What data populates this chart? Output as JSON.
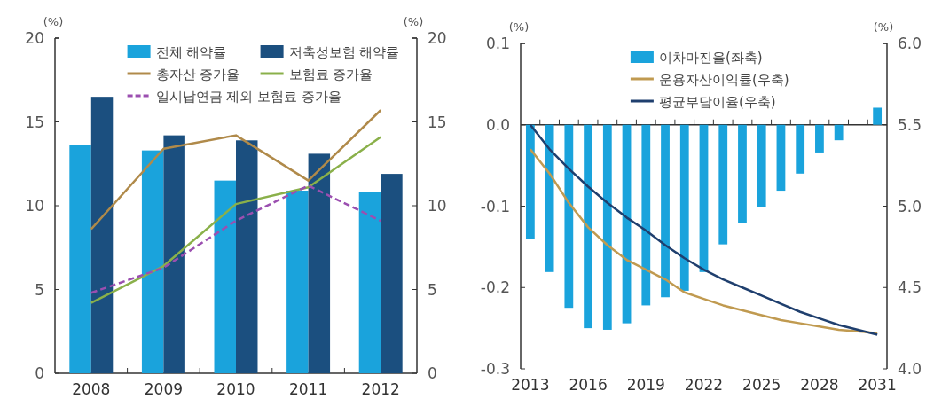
{
  "chart_data": [
    {
      "type": "bar",
      "ylabel": "(%)",
      "y2label": "(%)",
      "categories": [
        "2008",
        "2009",
        "2010",
        "2011",
        "2012"
      ],
      "ylim": [
        0,
        20
      ],
      "yticks": [
        0,
        5,
        10,
        15,
        20
      ],
      "y2lim": [
        0,
        20
      ],
      "y2ticks": [
        0,
        5,
        10,
        15,
        20
      ],
      "legend": "top",
      "series": [
        {
          "name": "전체 해약률",
          "color": "#1aa3dc",
          "values": [
            13.6,
            13.3,
            11.5,
            10.9,
            10.8
          ]
        },
        {
          "name": "저축성보험 해약률",
          "color": "#1b4f7f",
          "values": [
            16.5,
            14.2,
            13.9,
            13.1,
            11.9
          ]
        },
        {
          "name": "총자산 증가율",
          "type": "line",
          "axis": "y2",
          "color": "#b08a4a",
          "values": [
            8.6,
            13.4,
            14.2,
            11.5,
            15.7
          ]
        },
        {
          "name": "보험료 증가율",
          "type": "line",
          "axis": "y2",
          "color": "#8ab04a",
          "values": [
            4.2,
            6.4,
            10.1,
            11.1,
            14.1
          ]
        },
        {
          "name": "일시납연금 제외 보험료 증가율",
          "type": "line",
          "axis": "y2",
          "line_style": "dashed",
          "color": "#9b4fb0",
          "values": [
            4.8,
            6.3,
            9.1,
            11.2,
            9.1
          ]
        }
      ]
    },
    {
      "type": "bar",
      "ylabel": "(%)",
      "y2label": "(%)",
      "categories": [
        "2013",
        null,
        null,
        "2016",
        null,
        null,
        "2019",
        null,
        null,
        "2022",
        null,
        null,
        "2025",
        null,
        null,
        "2028",
        null,
        null,
        "2031"
      ],
      "ylim": [
        -0.3,
        0.1
      ],
      "yticks": [
        -0.3,
        -0.2,
        -0.1,
        {
          "value": 0,
          "label": "0.0"
        },
        0.1
      ],
      "y2lim": [
        4.0,
        6.0
      ],
      "y2ticks": [
        {
          "value": 4,
          "label": "4.0"
        },
        4.5,
        {
          "value": 5,
          "label": "5.0"
        },
        5.5,
        {
          "value": 6,
          "label": "6.0"
        }
      ],
      "legend": "top",
      "series": [
        {
          "name": "이차마진율(좌축)",
          "color": "#1aa3dc",
          "values": [
            -0.14,
            -0.181,
            -0.225,
            -0.25,
            -0.252,
            -0.244,
            -0.222,
            -0.212,
            -0.204,
            -0.181,
            -0.147,
            -0.121,
            -0.101,
            -0.081,
            -0.06,
            -0.034,
            -0.019,
            0,
            0.021
          ]
        },
        {
          "name": "운용자산이익률(우축)",
          "type": "line",
          "axis": "y2",
          "color": "#c09a50",
          "values": [
            5.35,
            5.2,
            5.02,
            4.87,
            4.76,
            4.67,
            4.61,
            4.55,
            4.47,
            4.43,
            4.39,
            4.36,
            4.33,
            4.3,
            4.28,
            4.26,
            4.24,
            4.23,
            4.22
          ]
        },
        {
          "name": "평균부담이율(우축)",
          "type": "line",
          "axis": "y2",
          "color": "#1f3f6e",
          "values": [
            5.5,
            5.35,
            5.23,
            5.12,
            5.02,
            4.93,
            4.85,
            4.76,
            4.68,
            4.61,
            4.55,
            4.5,
            4.45,
            4.4,
            4.35,
            4.31,
            4.27,
            4.24,
            4.21
          ]
        }
      ]
    }
  ]
}
